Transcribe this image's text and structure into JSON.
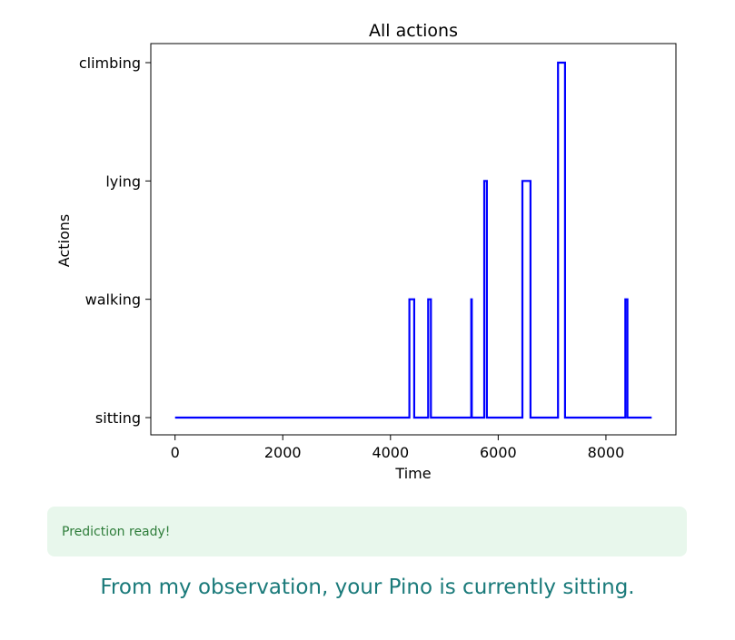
{
  "chart_data": {
    "type": "line",
    "title": "All actions",
    "xlabel": "Time",
    "ylabel": "Actions",
    "categories": [
      "sitting",
      "walking",
      "lying",
      "climbing"
    ],
    "xlim": [
      -450,
      9300
    ],
    "xticks": [
      0,
      2000,
      4000,
      6000,
      8000
    ],
    "grid": false,
    "series": [
      {
        "color": "#0000ff",
        "points": [
          [
            0,
            0
          ],
          [
            4350,
            0
          ],
          [
            4350,
            1
          ],
          [
            4440,
            1
          ],
          [
            4440,
            0
          ],
          [
            4700,
            0
          ],
          [
            4700,
            1
          ],
          [
            4750,
            1
          ],
          [
            4750,
            0
          ],
          [
            5500,
            0
          ],
          [
            5500,
            1
          ],
          [
            5510,
            1
          ],
          [
            5510,
            0
          ],
          [
            5740,
            0
          ],
          [
            5740,
            2
          ],
          [
            5790,
            2
          ],
          [
            5790,
            0
          ],
          [
            6450,
            0
          ],
          [
            6450,
            2
          ],
          [
            6600,
            2
          ],
          [
            6600,
            0
          ],
          [
            7110,
            0
          ],
          [
            7110,
            3
          ],
          [
            7240,
            3
          ],
          [
            7240,
            0
          ],
          [
            8360,
            0
          ],
          [
            8360,
            1
          ],
          [
            8400,
            1
          ],
          [
            8400,
            0
          ],
          [
            8850,
            0
          ]
        ]
      }
    ]
  },
  "status": {
    "message": "Prediction ready!",
    "color": "#2e7d3a",
    "background": "#e8f7ec"
  },
  "result": {
    "message": "From my observation, your Pino is currently sitting."
  }
}
